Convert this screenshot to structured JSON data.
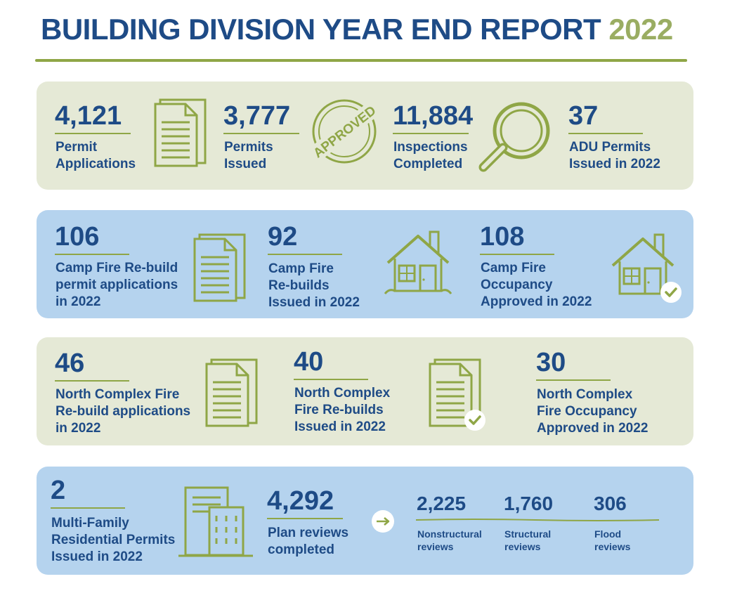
{
  "header": {
    "title": "BUILDING DIVISION YEAR END REPORT",
    "year": "2022"
  },
  "colors": {
    "navy": "#1e4b86",
    "olive": "#8fa646",
    "green_panel": "#e5e9d6",
    "blue_panel": "#b5d3ee"
  },
  "row1": [
    {
      "value": "4,121",
      "label1": "Permit",
      "label2": "Applications",
      "icon": "document-icon"
    },
    {
      "value": "3,777",
      "label1": "Permits",
      "label2": "Issued",
      "icon": "approved-stamp-icon",
      "stamp_text": "APPROVED"
    },
    {
      "value": "11,884",
      "label1": "Inspections",
      "label2": "Completed",
      "icon": "magnifier-icon"
    },
    {
      "value": "37",
      "label1": "ADU Permits",
      "label2": "Issued in 2022"
    }
  ],
  "row2": [
    {
      "value": "106",
      "label1": "Camp Fire Re-build",
      "label2": "permit applications",
      "label3": "in 2022",
      "icon": "document-icon"
    },
    {
      "value": "92",
      "label1": "Camp Fire",
      "label2": "Re-builds",
      "label3": "Issued in 2022",
      "icon": "house-icon"
    },
    {
      "value": "108",
      "label1": "Camp Fire",
      "label2": "Occupancy",
      "label3": "Approved in 2022",
      "icon": "house-check-icon"
    }
  ],
  "row3": [
    {
      "value": "46",
      "label1": "North Complex Fire",
      "label2": "Re-build applications",
      "label3": "in 2022",
      "icon": "document-icon"
    },
    {
      "value": "40",
      "label1": "North Complex",
      "label2": "Fire Re-builds",
      "label3": "Issued in 2022",
      "icon": "document-check-icon"
    },
    {
      "value": "30",
      "label1": "North Complex",
      "label2": "Fire Occupancy",
      "label3": "Approved in 2022"
    }
  ],
  "row4": {
    "multi": {
      "value": "2",
      "label1": "Multi-Family",
      "label2": "Residential Permits",
      "label3": "Issued in 2022",
      "icon": "buildings-icon"
    },
    "plan": {
      "value": "4,292",
      "label1": "Plan reviews",
      "label2": "completed",
      "icon": "arrow-right-icon"
    },
    "breakdown": [
      {
        "value": "2,225",
        "label1": "Nonstructural",
        "label2": "reviews"
      },
      {
        "value": "1,760",
        "label1": "Structural",
        "label2": "reviews"
      },
      {
        "value": "306",
        "label1": "Flood",
        "label2": "reviews"
      }
    ]
  }
}
